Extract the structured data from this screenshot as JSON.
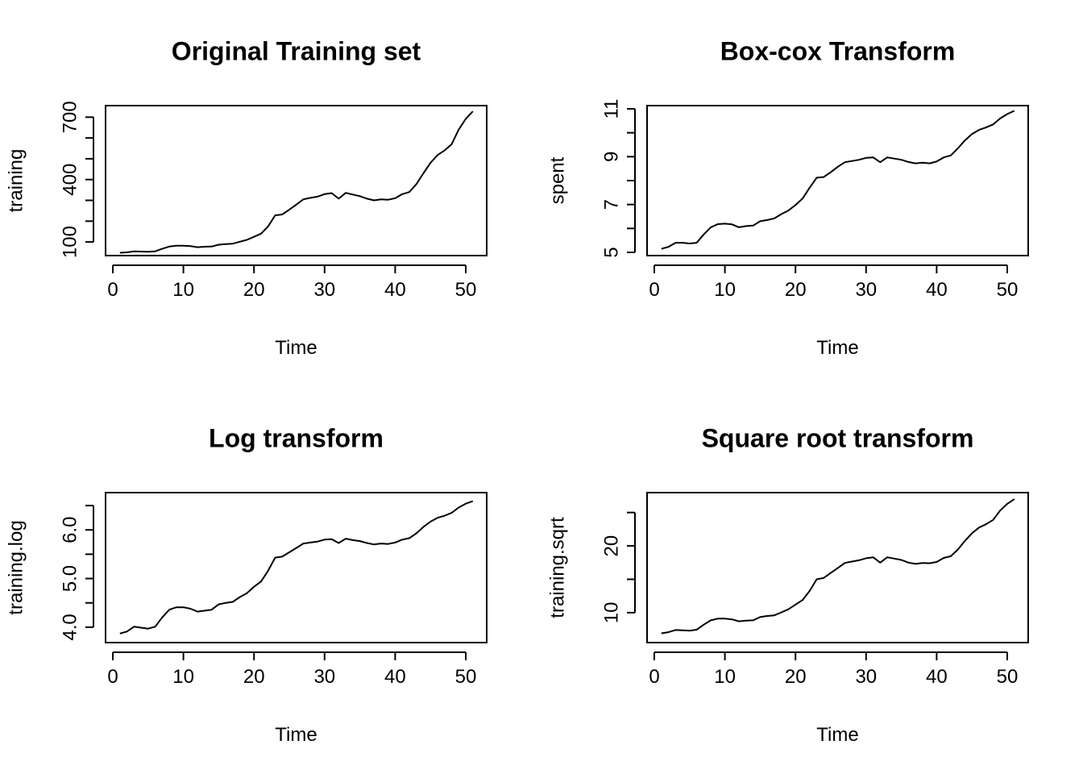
{
  "chart_data": [
    {
      "type": "line",
      "title": "Original Training set",
      "xlabel": "Time",
      "ylabel": "training",
      "xlim": [
        0,
        51
      ],
      "ylim": [
        50,
        740
      ],
      "x_ticks": [
        0,
        10,
        20,
        30,
        40,
        50
      ],
      "y_ticks": [
        100,
        200,
        300,
        400,
        500,
        600,
        700
      ],
      "y_tick_labels": [
        "100",
        "",
        "",
        "400",
        "",
        "",
        "700"
      ],
      "grid": false,
      "series": [
        {
          "x": [
            1,
            2,
            3,
            4,
            5,
            6,
            7,
            8,
            9,
            10,
            11,
            12,
            13,
            14,
            15,
            16,
            17,
            18,
            19,
            20,
            21,
            22,
            23,
            24,
            25,
            26,
            27,
            28,
            29,
            30,
            31,
            32,
            33,
            34,
            35,
            36,
            37,
            38,
            39,
            40,
            41,
            42,
            43,
            44,
            45,
            46,
            47,
            48,
            49,
            50,
            51
          ],
          "values": [
            48,
            50,
            55,
            54,
            53,
            55,
            67,
            78,
            82,
            82,
            80,
            75,
            77,
            78,
            87,
            90,
            92,
            101,
            110,
            125,
            140,
            175,
            228,
            232,
            255,
            280,
            305,
            312,
            318,
            330,
            335,
            308,
            336,
            328,
            320,
            308,
            300,
            305,
            303,
            310,
            330,
            340,
            378,
            430,
            480,
            518,
            540,
            570,
            640,
            692,
            728
          ]
        }
      ]
    },
    {
      "type": "line",
      "title": "Box-cox Transform",
      "xlabel": "Time",
      "ylabel": "spent",
      "xlim": [
        0,
        51
      ],
      "ylim": [
        5,
        11
      ],
      "x_ticks": [
        0,
        10,
        20,
        30,
        40,
        50
      ],
      "y_ticks": [
        5,
        6,
        7,
        8,
        9,
        10,
        11
      ],
      "y_tick_labels": [
        "5",
        "",
        "7",
        "",
        "9",
        "",
        "11"
      ],
      "grid": false,
      "series": [
        {
          "x": [
            1,
            2,
            3,
            4,
            5,
            6,
            7,
            8,
            9,
            10,
            11,
            12,
            13,
            14,
            15,
            16,
            17,
            18,
            19,
            20,
            21,
            22,
            23,
            24,
            25,
            26,
            27,
            28,
            29,
            30,
            31,
            32,
            33,
            34,
            35,
            36,
            37,
            38,
            39,
            40,
            41,
            42,
            43,
            44,
            45,
            46,
            47,
            48,
            49,
            50,
            51
          ],
          "values": [
            5.15,
            5.23,
            5.4,
            5.4,
            5.37,
            5.4,
            5.75,
            6.05,
            6.18,
            6.2,
            6.17,
            6.05,
            6.1,
            6.12,
            6.3,
            6.35,
            6.42,
            6.6,
            6.75,
            6.98,
            7.25,
            7.7,
            8.12,
            8.15,
            8.35,
            8.58,
            8.77,
            8.82,
            8.87,
            8.95,
            8.97,
            8.77,
            8.97,
            8.92,
            8.87,
            8.78,
            8.72,
            8.75,
            8.72,
            8.8,
            8.97,
            9.05,
            9.35,
            9.68,
            9.95,
            10.12,
            10.22,
            10.35,
            10.6,
            10.78,
            10.92
          ]
        }
      ]
    },
    {
      "type": "line",
      "title": "Log transform",
      "xlabel": "Time",
      "ylabel": "training.log",
      "xlim": [
        0,
        51
      ],
      "ylim": [
        3.75,
        6.7
      ],
      "x_ticks": [
        0,
        10,
        20,
        30,
        40,
        50
      ],
      "y_ticks": [
        4.0,
        4.5,
        5.0,
        5.5,
        6.0,
        6.5
      ],
      "y_tick_labels": [
        "4.0",
        "",
        "5.0",
        "",
        "6.0",
        ""
      ],
      "grid": false,
      "series": [
        {
          "x": [
            1,
            2,
            3,
            4,
            5,
            6,
            7,
            8,
            9,
            10,
            11,
            12,
            13,
            14,
            15,
            16,
            17,
            18,
            19,
            20,
            21,
            22,
            23,
            24,
            25,
            26,
            27,
            28,
            29,
            30,
            31,
            32,
            33,
            34,
            35,
            36,
            37,
            38,
            39,
            40,
            41,
            42,
            43,
            44,
            45,
            46,
            47,
            48,
            49,
            50,
            51
          ],
          "values": [
            3.87,
            3.91,
            4.01,
            3.99,
            3.97,
            4.01,
            4.2,
            4.36,
            4.41,
            4.41,
            4.38,
            4.32,
            4.34,
            4.36,
            4.47,
            4.5,
            4.52,
            4.62,
            4.7,
            4.83,
            4.94,
            5.16,
            5.43,
            5.45,
            5.54,
            5.63,
            5.72,
            5.74,
            5.76,
            5.8,
            5.81,
            5.73,
            5.82,
            5.79,
            5.77,
            5.73,
            5.7,
            5.72,
            5.71,
            5.74,
            5.8,
            5.83,
            5.93,
            6.06,
            6.17,
            6.25,
            6.29,
            6.35,
            6.46,
            6.54,
            6.59
          ]
        }
      ]
    },
    {
      "type": "line",
      "title": "Square root transform",
      "xlabel": "Time",
      "ylabel": "training.sqrt",
      "xlim": [
        0,
        51
      ],
      "ylim": [
        6.0,
        27.5
      ],
      "x_ticks": [
        0,
        10,
        20,
        30,
        40,
        50
      ],
      "y_ticks": [
        10,
        15,
        20,
        25
      ],
      "y_tick_labels": [
        "10",
        "",
        "20",
        ""
      ],
      "grid": false,
      "series": [
        {
          "x": [
            1,
            2,
            3,
            4,
            5,
            6,
            7,
            8,
            9,
            10,
            11,
            12,
            13,
            14,
            15,
            16,
            17,
            18,
            19,
            20,
            21,
            22,
            23,
            24,
            25,
            26,
            27,
            28,
            29,
            30,
            31,
            32,
            33,
            34,
            35,
            36,
            37,
            38,
            39,
            40,
            41,
            42,
            43,
            44,
            45,
            46,
            47,
            48,
            49,
            50,
            51
          ],
          "values": [
            6.9,
            7.07,
            7.4,
            7.35,
            7.3,
            7.45,
            8.2,
            8.85,
            9.1,
            9.1,
            9.0,
            8.7,
            8.8,
            8.85,
            9.35,
            9.5,
            9.6,
            10.05,
            10.5,
            11.2,
            11.9,
            13.25,
            15.0,
            15.2,
            15.95,
            16.7,
            17.45,
            17.65,
            17.85,
            18.15,
            18.3,
            17.5,
            18.3,
            18.1,
            17.9,
            17.5,
            17.3,
            17.45,
            17.4,
            17.6,
            18.2,
            18.45,
            19.45,
            20.75,
            21.9,
            22.75,
            23.25,
            23.9,
            25.3,
            26.3,
            27.0
          ]
        }
      ]
    }
  ]
}
